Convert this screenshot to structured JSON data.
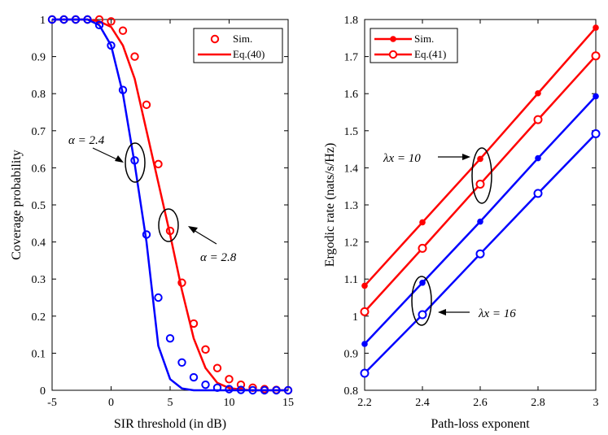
{
  "chart_data": [
    {
      "type": "line",
      "xlabel": "SIR threshold (in dB)",
      "ylabel": "Coverage probability",
      "xlim": [
        -5,
        15
      ],
      "ylim": [
        0,
        1
      ],
      "xticks": [
        -5,
        0,
        5,
        10,
        15
      ],
      "xtick_labels": [
        "-5",
        "0",
        "5",
        "10",
        "15"
      ],
      "yticks": [
        0,
        0.1,
        0.2,
        0.3,
        0.4,
        0.5,
        0.6,
        0.7,
        0.8,
        0.9,
        1
      ],
      "ytick_labels": [
        "0",
        "0.1",
        "0.2",
        "0.3",
        "0.4",
        "0.5",
        "0.6",
        "0.7",
        "0.8",
        "0.9",
        "1"
      ],
      "grid": false,
      "legend": {
        "placement": "top-right",
        "entries": [
          "Sim.",
          "Eq.(40)"
        ]
      },
      "annotations": [
        "α = 2.4",
        "α = 2.8"
      ],
      "series": [
        {
          "name": "Eq.(40)",
          "kind": "line",
          "color": "#ff0000",
          "x": [
            -5,
            -4,
            -3,
            -2,
            -1,
            0,
            1,
            2,
            3,
            4,
            5,
            6,
            7,
            8,
            9,
            10,
            11,
            12,
            13,
            14,
            15
          ],
          "y": [
            1.0,
            1.0,
            1.0,
            1.0,
            0.995,
            0.98,
            0.93,
            0.84,
            0.7,
            0.56,
            0.42,
            0.27,
            0.14,
            0.06,
            0.02,
            0.006,
            0.002,
            0,
            0,
            0,
            0
          ]
        },
        {
          "name": "Sim.",
          "kind": "marker",
          "color": "#ff0000",
          "x": [
            -5,
            -4,
            -3,
            -2,
            -1,
            0,
            1,
            2,
            3,
            4,
            5,
            6,
            7,
            8,
            9,
            10,
            11,
            12,
            13,
            14,
            15
          ],
          "y": [
            1.0,
            1.0,
            1.0,
            1.0,
            1.0,
            0.995,
            0.97,
            0.9,
            0.77,
            0.61,
            0.43,
            0.29,
            0.18,
            0.11,
            0.06,
            0.03,
            0.015,
            0.007,
            0.003,
            0.001,
            0
          ]
        },
        {
          "kind": "line",
          "color": "#0000ff",
          "x": [
            -5,
            -4,
            -3,
            -2,
            -1,
            0,
            1,
            2,
            3,
            4,
            5,
            6,
            7,
            8,
            9,
            10,
            11,
            12,
            13,
            14,
            15
          ],
          "y": [
            1.0,
            1.0,
            1.0,
            1.0,
            0.985,
            0.93,
            0.8,
            0.61,
            0.4,
            0.12,
            0.03,
            0.005,
            0,
            0,
            0,
            0,
            0,
            0,
            0,
            0,
            0
          ]
        },
        {
          "kind": "marker",
          "color": "#0000ff",
          "x": [
            -5,
            -4,
            -3,
            -2,
            -1,
            0,
            1,
            2,
            3,
            4,
            5,
            6,
            7,
            8,
            9,
            10,
            11,
            12,
            13,
            14,
            15
          ],
          "y": [
            1.0,
            1.0,
            1.0,
            1.0,
            0.985,
            0.93,
            0.81,
            0.62,
            0.42,
            0.25,
            0.14,
            0.075,
            0.035,
            0.015,
            0.007,
            0.003,
            0.001,
            0,
            0,
            0,
            0
          ]
        }
      ]
    },
    {
      "type": "line",
      "xlabel": "Path-loss exponent",
      "ylabel": "Ergodic rate (nats/s/Hz)",
      "xlim": [
        2.2,
        3
      ],
      "ylim": [
        0.8,
        1.8
      ],
      "xticks": [
        2.2,
        2.4,
        2.6,
        2.8,
        3
      ],
      "xtick_labels": [
        "2.2",
        "2.4",
        "2.6",
        "2.8",
        "3"
      ],
      "yticks": [
        0.8,
        0.9,
        1,
        1.1,
        1.2,
        1.3,
        1.4,
        1.5,
        1.6,
        1.7,
        1.8
      ],
      "ytick_labels": [
        "0.8",
        "0.9",
        "1",
        "1.1",
        "1.2",
        "1.3",
        "1.4",
        "1.5",
        "1.6",
        "1.7",
        "1.8"
      ],
      "grid": false,
      "legend": {
        "placement": "top-left",
        "entries": [
          "Sim.",
          "Eq.(41)"
        ]
      },
      "annotations": [
        "λx = 10",
        "λx = 16"
      ],
      "series": [
        {
          "name": "Sim.",
          "marker": "dot",
          "color": "#ff0000",
          "x": [
            2.2,
            2.4,
            2.6,
            2.8,
            3.0
          ],
          "y": [
            1.082,
            1.253,
            1.424,
            1.601,
            1.778
          ]
        },
        {
          "name": "Eq.(41)",
          "marker": "circle",
          "color": "#ff0000",
          "x": [
            2.2,
            2.4,
            2.6,
            2.8,
            3.0
          ],
          "y": [
            1.012,
            1.183,
            1.356,
            1.53,
            1.702
          ]
        },
        {
          "marker": "dot",
          "color": "#0000ff",
          "x": [
            2.2,
            2.4,
            2.6,
            2.8,
            3.0
          ],
          "y": [
            0.925,
            1.09,
            1.255,
            1.426,
            1.593
          ]
        },
        {
          "marker": "circle",
          "color": "#0000ff",
          "x": [
            2.2,
            2.4,
            2.6,
            2.8,
            3.0
          ],
          "y": [
            0.846,
            1.004,
            1.168,
            1.331,
            1.492
          ]
        }
      ]
    }
  ]
}
